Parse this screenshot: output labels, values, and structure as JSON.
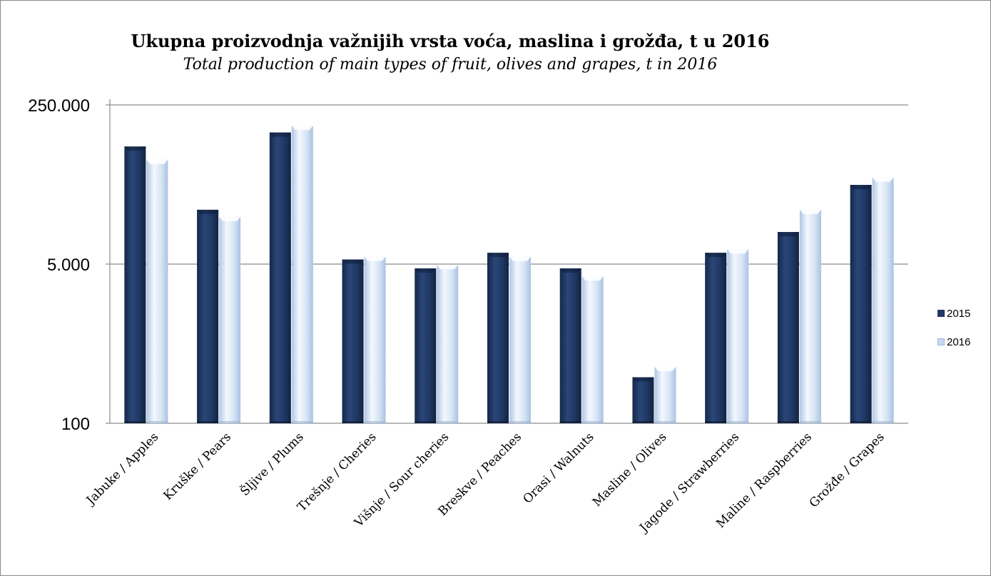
{
  "chart_data": {
    "type": "bar",
    "title": "Ukupna proizvodnja važnijih vrsta voća, maslina i grožđa, t u 2016",
    "subtitle": "Total production of main types of fruit, olives and grapes, t in 2016",
    "scale": "log",
    "ylim": [
      100,
      250000
    ],
    "yticks": [
      "250.000",
      "5.000",
      "100"
    ],
    "ytick_values": [
      250000,
      5000,
      100
    ],
    "grid": true,
    "legend_position": "right",
    "categories": [
      "Jabuke / Apples",
      "Kruške / Pears",
      "Šljive / Plums",
      "Trešnje / Cheries",
      "Višnje / Sour cheries",
      "Breskve / Peaches",
      "Orasi / Walnuts",
      "Masline / Olives",
      "Jagode / Strawberries",
      "Maline / Raspberries",
      "Grožđe / Grapes"
    ],
    "series": [
      {
        "name": "2015",
        "color": "#1f3864",
        "values": [
          90000,
          19000,
          127000,
          5600,
          4500,
          6600,
          4500,
          310,
          6600,
          11000,
          35000
        ]
      },
      {
        "name": "2016",
        "color": "#c6d9f1",
        "values": [
          65000,
          16000,
          150000,
          6000,
          4900,
          6000,
          3700,
          400,
          7200,
          19000,
          42000
        ]
      }
    ]
  }
}
